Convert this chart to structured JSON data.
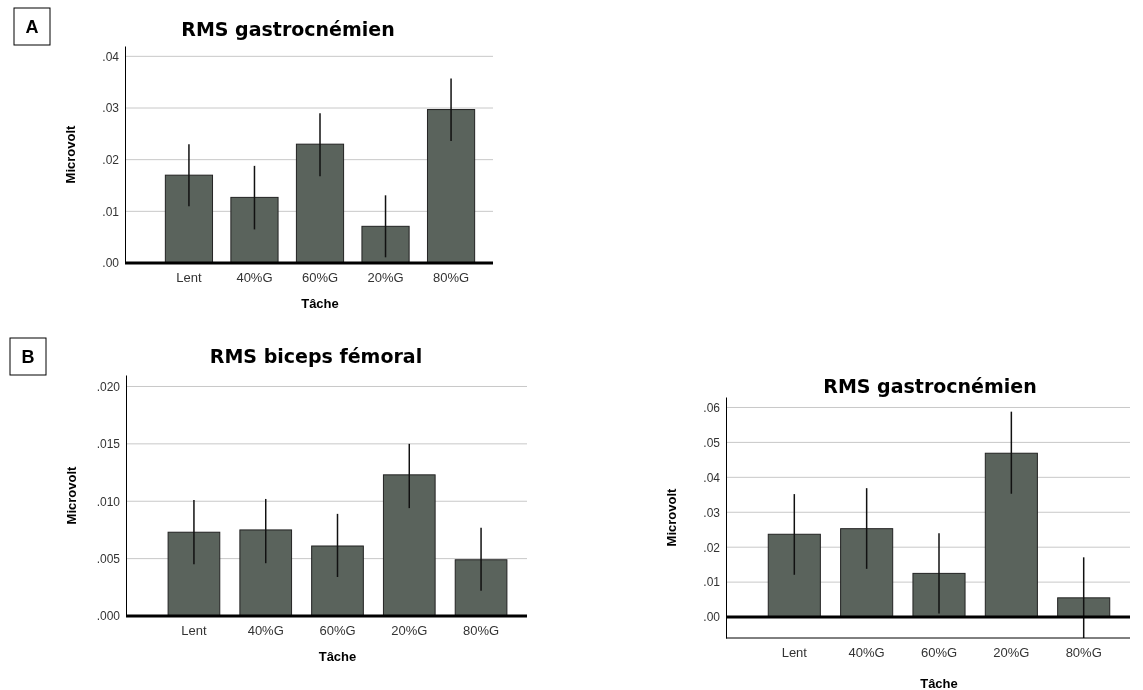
{
  "chart_data": [
    {
      "type": "bar",
      "title": "RMS gastrocnémien",
      "xlabel": "Tâche",
      "ylabel": "Microvolt",
      "annotations": [
        "A"
      ],
      "categories": [
        "Lent",
        "40%G",
        "60%G",
        "20%G",
        "80%G"
      ],
      "color": "#5a635c",
      "values": [
        0.017,
        0.0127,
        0.023,
        0.0071,
        0.0297
      ],
      "errors": [
        [
          0.011,
          0.023
        ],
        [
          0.0065,
          0.0188
        ],
        [
          0.0168,
          0.029
        ],
        [
          0.0011,
          0.0131
        ],
        [
          0.0236,
          0.0357
        ]
      ],
      "ylim": [
        0,
        0.042
      ],
      "yticks": [
        {
          "value": 0,
          "label": ".00"
        },
        {
          "value": 0.01,
          "label": ".01"
        },
        {
          "value": 0.02,
          "label": ".02"
        },
        {
          "value": 0.03,
          "label": ".03"
        },
        {
          "value": 0.04,
          "label": ".04"
        }
      ],
      "grid": "y"
    },
    {
      "type": "bar",
      "title": "RMS biceps fémoral",
      "xlabel": "Tâche",
      "ylabel": "Microvolt",
      "annotations": [
        "B"
      ],
      "categories": [
        "Lent",
        "40%G",
        "60%G",
        "20%G",
        "80%G"
      ],
      "color": "#5a635c",
      "values": [
        0.0073,
        0.0075,
        0.0061,
        0.0123,
        0.0049
      ],
      "errors": [
        [
          0.0045,
          0.0101
        ],
        [
          0.0046,
          0.0102
        ],
        [
          0.0034,
          0.0089
        ],
        [
          0.0094,
          0.015
        ],
        [
          0.0022,
          0.0077
        ]
      ],
      "ylim": [
        0,
        0.021
      ],
      "yticks": [
        {
          "value": 0,
          "label": ".000"
        },
        {
          "value": 0.005,
          "label": ".005"
        },
        {
          "value": 0.01,
          "label": ".010"
        },
        {
          "value": 0.015,
          "label": ".015"
        },
        {
          "value": 0.02,
          "label": ".020"
        }
      ],
      "grid": "y"
    },
    {
      "type": "bar",
      "title": "RMS gastrocnémien",
      "xlabel": "Tâche",
      "ylabel": "Microvolt",
      "categories": [
        "Lent",
        "40%G",
        "60%G",
        "20%G",
        "80%G"
      ],
      "color": "#5a635c",
      "values": [
        0.0237,
        0.0253,
        0.0125,
        0.0469,
        0.0055
      ],
      "errors": [
        [
          0.0121,
          0.0352
        ],
        [
          0.0138,
          0.0369
        ],
        [
          0.001,
          0.024
        ],
        [
          0.0353,
          0.0588
        ],
        [
          -0.006,
          0.0171
        ]
      ],
      "ylim": [
        -0.006,
        0.063
      ],
      "yticks": [
        {
          "value": 0,
          "label": ".00"
        },
        {
          "value": 0.01,
          "label": ".01"
        },
        {
          "value": 0.02,
          "label": ".02"
        },
        {
          "value": 0.03,
          "label": ".03"
        },
        {
          "value": 0.04,
          "label": ".04"
        },
        {
          "value": 0.05,
          "label": ".05"
        },
        {
          "value": 0.06,
          "label": ".06"
        }
      ],
      "grid": "y"
    }
  ]
}
